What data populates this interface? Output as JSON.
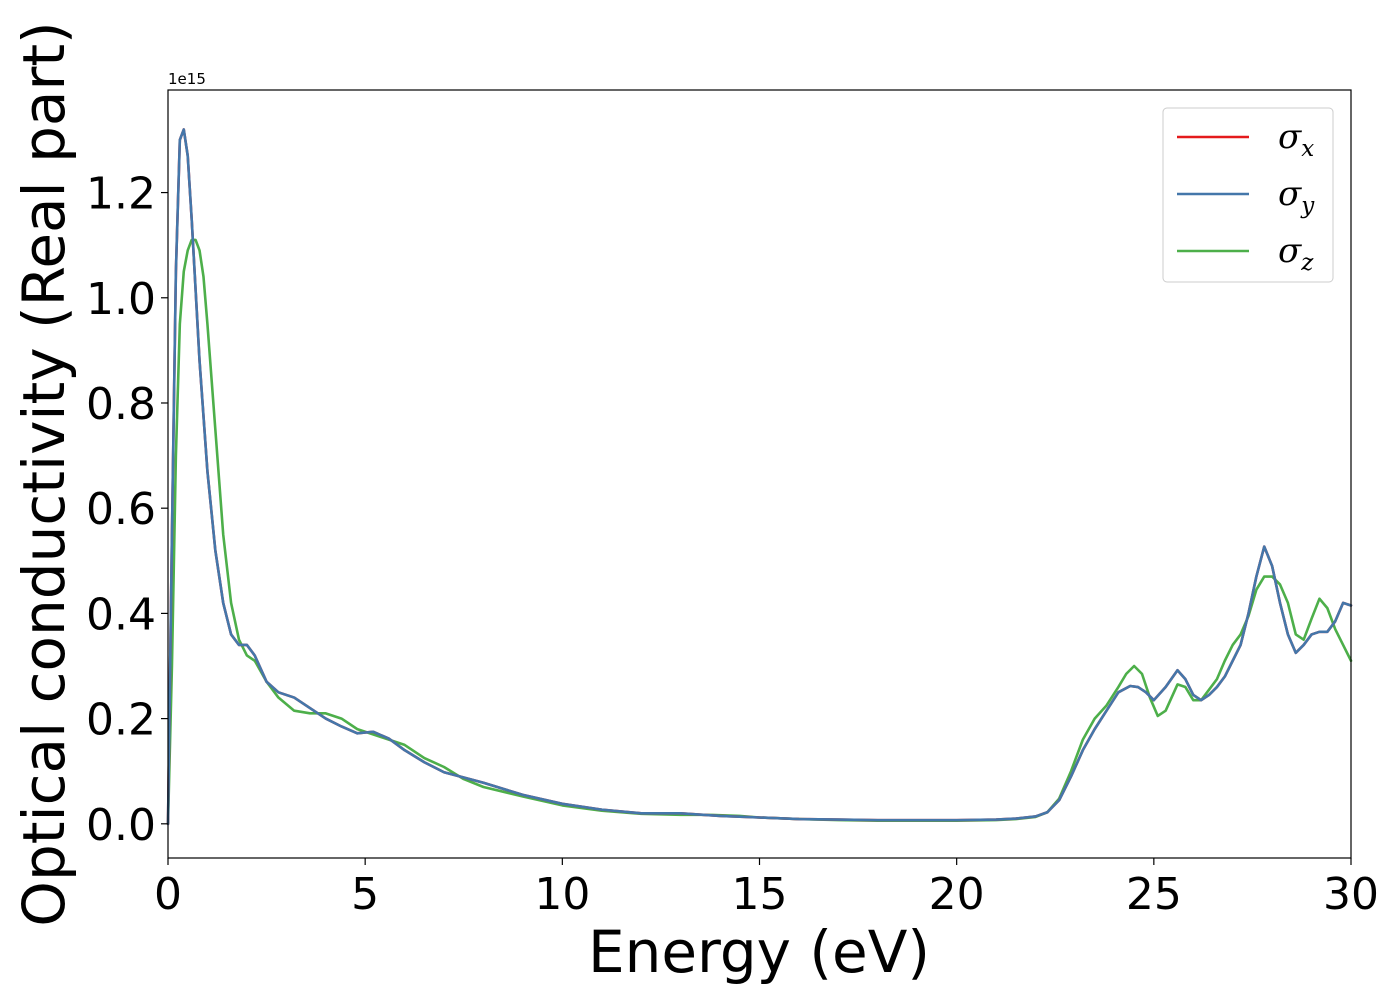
{
  "chart_data": {
    "type": "line",
    "title": "",
    "xlabel": "Energy (eV)",
    "ylabel": "Optical conductivity (Real part)",
    "y_offset_label": "1e15",
    "y_scale": 1000000000000000.0,
    "xlim": [
      0,
      30
    ],
    "ylim": [
      -0.065,
      1.395
    ],
    "xticks": [
      0,
      5,
      10,
      15,
      20,
      25,
      30
    ],
    "xtick_labels": [
      "0",
      "5",
      "10",
      "15",
      "20",
      "25",
      "30"
    ],
    "yticks": [
      0.0,
      0.2,
      0.4,
      0.6,
      0.8,
      1.0,
      1.2
    ],
    "ytick_labels": [
      "0.0",
      "0.2",
      "0.4",
      "0.6",
      "0.8",
      "1.0",
      "1.2"
    ],
    "grid": false,
    "legend_position": "top-right",
    "series": [
      {
        "name": "σx",
        "legend_base": "σ",
        "legend_sub": "x",
        "color": "#e41a1c",
        "x": [
          0,
          0.1,
          0.2,
          0.3,
          0.4,
          0.5,
          0.6,
          0.8,
          1.0,
          1.2,
          1.4,
          1.6,
          1.8,
          2.0,
          2.2,
          2.5,
          2.8,
          3.2,
          3.6,
          4.0,
          4.4,
          4.8,
          5.2,
          5.6,
          6.0,
          6.5,
          7.0,
          7.5,
          8.0,
          9.0,
          10.0,
          11.0,
          12.0,
          12.5,
          13.0,
          14.0,
          15.0,
          16.0,
          17.0,
          18.0,
          19.0,
          20.0,
          21.0,
          21.5,
          22.0,
          22.3,
          22.6,
          22.9,
          23.2,
          23.5,
          23.8,
          24.1,
          24.4,
          24.6,
          24.8,
          25.0,
          25.3,
          25.6,
          25.8,
          26.0,
          26.2,
          26.4,
          26.6,
          26.8,
          27.0,
          27.2,
          27.4,
          27.6,
          27.8,
          28.0,
          28.2,
          28.4,
          28.6,
          28.8,
          29.0,
          29.2,
          29.4,
          29.6,
          29.8,
          30.0
        ],
        "y": [
          0.0,
          0.55,
          1.05,
          1.3,
          1.32,
          1.27,
          1.15,
          0.88,
          0.67,
          0.52,
          0.42,
          0.36,
          0.34,
          0.34,
          0.32,
          0.27,
          0.25,
          0.24,
          0.22,
          0.2,
          0.185,
          0.172,
          0.175,
          0.162,
          0.14,
          0.117,
          0.098,
          0.088,
          0.078,
          0.055,
          0.038,
          0.027,
          0.02,
          0.02,
          0.02,
          0.015,
          0.012,
          0.009,
          0.008,
          0.007,
          0.007,
          0.007,
          0.008,
          0.01,
          0.014,
          0.022,
          0.045,
          0.09,
          0.14,
          0.18,
          0.215,
          0.25,
          0.262,
          0.26,
          0.25,
          0.235,
          0.26,
          0.292,
          0.275,
          0.245,
          0.235,
          0.245,
          0.26,
          0.28,
          0.31,
          0.34,
          0.4,
          0.47,
          0.527,
          0.49,
          0.42,
          0.36,
          0.325,
          0.34,
          0.36,
          0.365,
          0.365,
          0.385,
          0.42,
          0.415
        ]
      },
      {
        "name": "σy",
        "legend_base": "σ",
        "legend_sub": "y",
        "color": "#4477aa",
        "x": [
          0,
          0.1,
          0.2,
          0.3,
          0.4,
          0.5,
          0.6,
          0.8,
          1.0,
          1.2,
          1.4,
          1.6,
          1.8,
          2.0,
          2.2,
          2.5,
          2.8,
          3.2,
          3.6,
          4.0,
          4.4,
          4.8,
          5.2,
          5.6,
          6.0,
          6.5,
          7.0,
          7.5,
          8.0,
          9.0,
          10.0,
          11.0,
          12.0,
          12.5,
          13.0,
          14.0,
          15.0,
          16.0,
          17.0,
          18.0,
          19.0,
          20.0,
          21.0,
          21.5,
          22.0,
          22.3,
          22.6,
          22.9,
          23.2,
          23.5,
          23.8,
          24.1,
          24.4,
          24.6,
          24.8,
          25.0,
          25.3,
          25.6,
          25.8,
          26.0,
          26.2,
          26.4,
          26.6,
          26.8,
          27.0,
          27.2,
          27.4,
          27.6,
          27.8,
          28.0,
          28.2,
          28.4,
          28.6,
          28.8,
          29.0,
          29.2,
          29.4,
          29.6,
          29.8,
          30.0
        ],
        "y": [
          0.0,
          0.55,
          1.05,
          1.3,
          1.32,
          1.27,
          1.15,
          0.88,
          0.67,
          0.52,
          0.42,
          0.36,
          0.34,
          0.34,
          0.32,
          0.27,
          0.25,
          0.24,
          0.22,
          0.2,
          0.185,
          0.172,
          0.175,
          0.162,
          0.14,
          0.117,
          0.098,
          0.088,
          0.078,
          0.055,
          0.038,
          0.027,
          0.02,
          0.02,
          0.02,
          0.015,
          0.012,
          0.009,
          0.008,
          0.007,
          0.007,
          0.007,
          0.008,
          0.01,
          0.014,
          0.022,
          0.045,
          0.09,
          0.14,
          0.18,
          0.215,
          0.25,
          0.262,
          0.26,
          0.25,
          0.235,
          0.26,
          0.292,
          0.275,
          0.245,
          0.235,
          0.245,
          0.26,
          0.28,
          0.31,
          0.34,
          0.4,
          0.47,
          0.527,
          0.49,
          0.42,
          0.36,
          0.325,
          0.34,
          0.36,
          0.365,
          0.365,
          0.385,
          0.42,
          0.415
        ]
      },
      {
        "name": "σz",
        "legend_base": "σ",
        "legend_sub": "z",
        "color": "#4daf4a",
        "x": [
          0,
          0.1,
          0.2,
          0.3,
          0.4,
          0.5,
          0.6,
          0.7,
          0.8,
          0.9,
          1.0,
          1.2,
          1.4,
          1.6,
          1.8,
          2.0,
          2.2,
          2.5,
          2.8,
          3.2,
          3.6,
          4.0,
          4.4,
          4.8,
          5.2,
          5.6,
          6.0,
          6.5,
          7.0,
          7.5,
          8.0,
          9.0,
          10.0,
          11.0,
          12.0,
          13.0,
          13.8,
          14.5,
          15.0,
          16.0,
          17.0,
          18.0,
          19.0,
          20.0,
          21.0,
          21.5,
          22.0,
          22.3,
          22.6,
          22.9,
          23.2,
          23.5,
          23.8,
          24.1,
          24.3,
          24.5,
          24.7,
          24.9,
          25.1,
          25.3,
          25.6,
          25.8,
          26.0,
          26.2,
          26.4,
          26.6,
          26.8,
          27.0,
          27.2,
          27.4,
          27.6,
          27.8,
          28.0,
          28.2,
          28.4,
          28.6,
          28.8,
          29.0,
          29.2,
          29.4,
          29.6,
          29.8,
          30.0
        ],
        "y": [
          0.0,
          0.3,
          0.7,
          0.95,
          1.05,
          1.09,
          1.11,
          1.11,
          1.09,
          1.04,
          0.95,
          0.75,
          0.55,
          0.42,
          0.35,
          0.32,
          0.31,
          0.27,
          0.24,
          0.215,
          0.21,
          0.21,
          0.2,
          0.18,
          0.17,
          0.16,
          0.15,
          0.125,
          0.108,
          0.085,
          0.07,
          0.052,
          0.035,
          0.025,
          0.019,
          0.017,
          0.017,
          0.015,
          0.012,
          0.009,
          0.007,
          0.006,
          0.006,
          0.006,
          0.007,
          0.009,
          0.013,
          0.022,
          0.048,
          0.1,
          0.16,
          0.2,
          0.225,
          0.26,
          0.285,
          0.3,
          0.285,
          0.24,
          0.205,
          0.215,
          0.265,
          0.26,
          0.235,
          0.235,
          0.255,
          0.275,
          0.31,
          0.34,
          0.36,
          0.395,
          0.445,
          0.47,
          0.47,
          0.455,
          0.42,
          0.36,
          0.35,
          0.39,
          0.428,
          0.41,
          0.37,
          0.34,
          0.31
        ]
      }
    ]
  }
}
